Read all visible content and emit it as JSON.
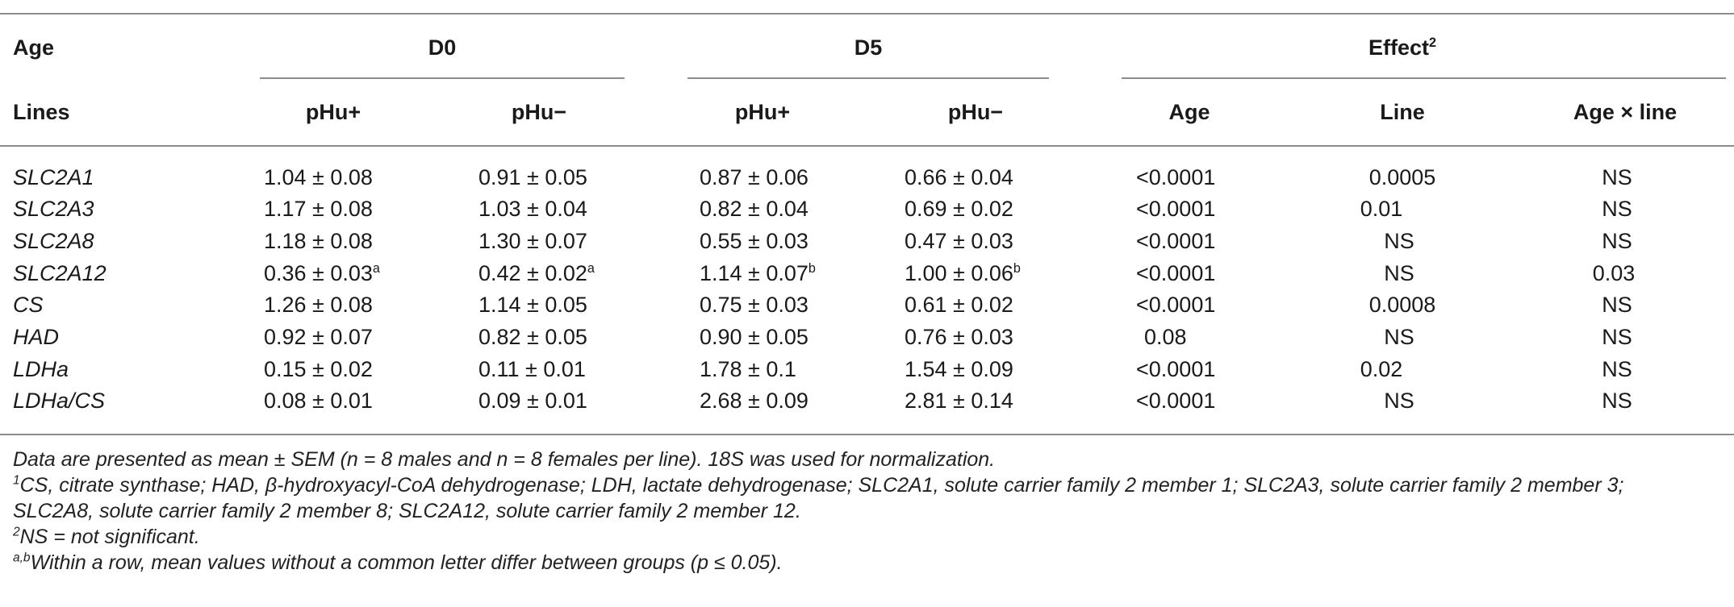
{
  "header": {
    "row1": {
      "label": "Age",
      "group_d0": "D0",
      "group_d5": "D5",
      "group_effect": "Effect",
      "effect_sup": "2"
    },
    "row2": {
      "label": "Lines",
      "cols": [
        "pHu+",
        "pHu−",
        "pHu+",
        "pHu−",
        "Age",
        "Line",
        "Age × line"
      ]
    }
  },
  "rows": [
    {
      "gene": "SLC2A1",
      "d0_pos": "1.04 ± 0.08",
      "d0_neg": "0.91 ± 0.05",
      "d5_pos": "0.87 ± 0.06",
      "d5_neg": "0.66 ± 0.04",
      "age": "<0.0001",
      "line": "0.0005",
      "age_line": "NS"
    },
    {
      "gene": "SLC2A3",
      "d0_pos": "1.17 ± 0.08",
      "d0_neg": "1.03 ± 0.04",
      "d5_pos": "0.82 ± 0.04",
      "d5_neg": "0.69 ± 0.02",
      "age": "<0.0001",
      "line": "0.01",
      "age_line": "NS"
    },
    {
      "gene": "SLC2A8",
      "d0_pos": "1.18 ± 0.08",
      "d0_neg": "1.30 ± 0.07",
      "d5_pos": "0.55 ± 0.03",
      "d5_neg": "0.47 ± 0.03",
      "age": "<0.0001",
      "line": "NS",
      "age_line": "NS"
    },
    {
      "gene": "SLC2A12",
      "d0_pos": "0.36 ± 0.03",
      "d0_pos_sup": "a",
      "d0_neg": "0.42 ± 0.02",
      "d0_neg_sup": "a",
      "d5_pos": "1.14 ± 0.07",
      "d5_pos_sup": "b",
      "d5_neg": "1.00 ± 0.06",
      "d5_neg_sup": "b",
      "age": "<0.0001",
      "line": "NS",
      "age_line": "0.03"
    },
    {
      "gene": "CS",
      "d0_pos": "1.26 ± 0.08",
      "d0_neg": "1.14 ± 0.05",
      "d5_pos": "0.75 ± 0.03",
      "d5_neg": "0.61 ± 0.02",
      "age": "<0.0001",
      "line": "0.0008",
      "age_line": "NS"
    },
    {
      "gene": "HAD",
      "d0_pos": "0.92 ± 0.07",
      "d0_neg": "0.82 ± 0.05",
      "d5_pos": "0.90 ± 0.05",
      "d5_neg": "0.76 ± 0.03",
      "age": "0.08",
      "line": "NS",
      "age_line": "NS"
    },
    {
      "gene": "LDHa",
      "d0_pos": "0.15 ± 0.02",
      "d0_neg": "0.11 ± 0.01",
      "d5_pos": "1.78 ± 0.1",
      "d5_neg": "1.54 ± 0.09",
      "age": "<0.0001",
      "line": "0.02",
      "age_line": "NS"
    },
    {
      "gene": "LDHa/CS",
      "d0_pos": "0.08 ± 0.01",
      "d0_neg": "0.09 ± 0.01",
      "d5_pos": "2.68 ± 0.09",
      "d5_neg": "2.81 ± 0.14",
      "age": "<0.0001",
      "line": "NS",
      "age_line": "NS"
    }
  ],
  "footnotes": {
    "n1": "Data are presented as mean ± SEM (n = 8 males and n = 8 females per line). 18S was used for normalization.",
    "n2_sup": "1",
    "n2_line1": "CS, citrate synthase; HAD, β-hydroxyacyl-CoA dehydrogenase; LDH, lactate dehydrogenase; SLC2A1, solute carrier family 2 member 1; SLC2A3, solute carrier family 2 member 3;",
    "n2_line2": "SLC2A8, solute carrier family 2 member 8; SLC2A12, solute carrier family 2 member 12.",
    "n3_sup": "2",
    "n3": "NS = not significant.",
    "n4_sup": "a,b",
    "n4": "Within a row, mean values without a common letter differ between groups (p ≤ 0.05)."
  }
}
